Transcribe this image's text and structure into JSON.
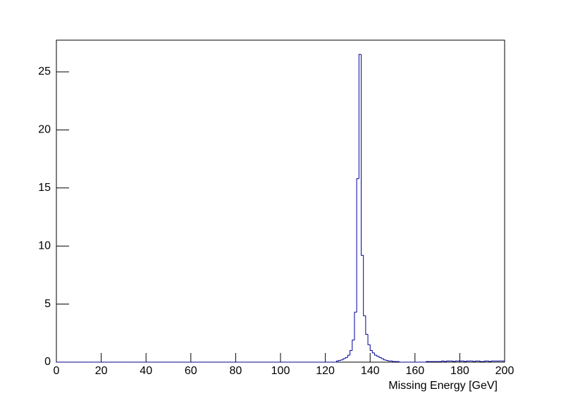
{
  "chart_data": {
    "type": "histogram",
    "x_label": "Missing Energy [GeV]",
    "color": "#000099",
    "bins": [
      0,
      1,
      2,
      3,
      4,
      5,
      6,
      7,
      8,
      9,
      10,
      11,
      12,
      13,
      14,
      15,
      16,
      17,
      18,
      19,
      20,
      21,
      22,
      23,
      24,
      25,
      26,
      27,
      28,
      29,
      30,
      31,
      32,
      33,
      34,
      35,
      36,
      37,
      38,
      39,
      40,
      41,
      42,
      43,
      44,
      45,
      46,
      47,
      48,
      49,
      50,
      51,
      52,
      53,
      54,
      55,
      56,
      57,
      58,
      59,
      60,
      61,
      62,
      63,
      64,
      65,
      66,
      67,
      68,
      69,
      70,
      71,
      72,
      73,
      74,
      75,
      76,
      77,
      78,
      79,
      80,
      81,
      82,
      83,
      84,
      85,
      86,
      87,
      88,
      89,
      90,
      91,
      92,
      93,
      94,
      95,
      96,
      97,
      98,
      99,
      100,
      101,
      102,
      103,
      104,
      105,
      106,
      107,
      108,
      109,
      110,
      111,
      112,
      113,
      114,
      115,
      116,
      117,
      118,
      119,
      120,
      121,
      122,
      123,
      124,
      125,
      126,
      127,
      128,
      129,
      130,
      131,
      132,
      133,
      134,
      135,
      136,
      137,
      138,
      139,
      140,
      141,
      142,
      143,
      144,
      145,
      146,
      147,
      148,
      149,
      150,
      151,
      152,
      153,
      154,
      155,
      156,
      157,
      158,
      159,
      160,
      161,
      162,
      163,
      164,
      165,
      166,
      167,
      168,
      169,
      170,
      171,
      172,
      173,
      174,
      175,
      176,
      177,
      178,
      179,
      180,
      181,
      182,
      183,
      184,
      185,
      186,
      187,
      188,
      189,
      190,
      191,
      192,
      193,
      194,
      195,
      196,
      197,
      198,
      199,
      200
    ],
    "values": [
      0,
      0,
      0,
      0,
      0,
      0,
      0,
      0,
      0,
      0,
      0,
      0,
      0,
      0,
      0,
      0,
      0,
      0,
      0,
      0,
      0,
      0,
      0,
      0,
      0,
      0,
      0,
      0,
      0,
      0,
      0,
      0,
      0,
      0,
      0,
      0,
      0,
      0,
      0,
      0,
      0,
      0,
      0,
      0,
      0,
      0,
      0,
      0,
      0,
      0,
      0,
      0,
      0,
      0,
      0,
      0,
      0,
      0,
      0,
      0,
      0,
      0,
      0,
      0,
      0,
      0,
      0,
      0,
      0,
      0,
      0,
      0,
      0,
      0,
      0,
      0,
      0,
      0,
      0,
      0,
      0,
      0,
      0,
      0,
      0,
      0,
      0,
      0,
      0,
      0,
      0,
      0,
      0,
      0,
      0,
      0,
      0,
      0,
      0,
      0,
      0,
      0,
      0,
      0,
      0,
      0,
      0,
      0,
      0,
      0,
      0,
      0,
      0,
      0,
      0,
      0,
      0,
      0,
      0,
      0,
      0,
      0,
      0,
      0,
      0,
      0.1,
      0.15,
      0.2,
      0.3,
      0.4,
      0.6,
      1.0,
      1.9,
      4.3,
      15.8,
      26.5,
      9.2,
      4.0,
      2.4,
      1.5,
      1.0,
      0.8,
      0.6,
      0.5,
      0.4,
      0.3,
      0.2,
      0.15,
      0.1,
      0.1,
      0.05,
      0.05,
      0.05,
      0,
      0,
      0,
      0,
      0,
      0,
      0,
      0,
      0,
      0,
      0,
      0,
      0.05,
      0.05,
      0.05,
      0.05,
      0.05,
      0.05,
      0.05,
      0.1,
      0.05,
      0.1,
      0.1,
      0.1,
      0.05,
      0.1,
      0.1,
      0.1,
      0.1,
      0.05,
      0.1,
      0.1,
      0.1,
      0.05,
      0.1,
      0.1,
      0.05,
      0.05,
      0.1,
      0.1,
      0.05,
      0.1,
      0.1,
      0.1,
      0.1,
      0.1,
      0.1
    ],
    "xlim": [
      0,
      200
    ],
    "xticks": [
      0,
      20,
      40,
      60,
      80,
      100,
      120,
      140,
      160,
      180,
      200
    ],
    "ylim": [
      0,
      27.73
    ],
    "yticks": [
      0,
      5,
      10,
      15,
      20,
      25
    ]
  }
}
